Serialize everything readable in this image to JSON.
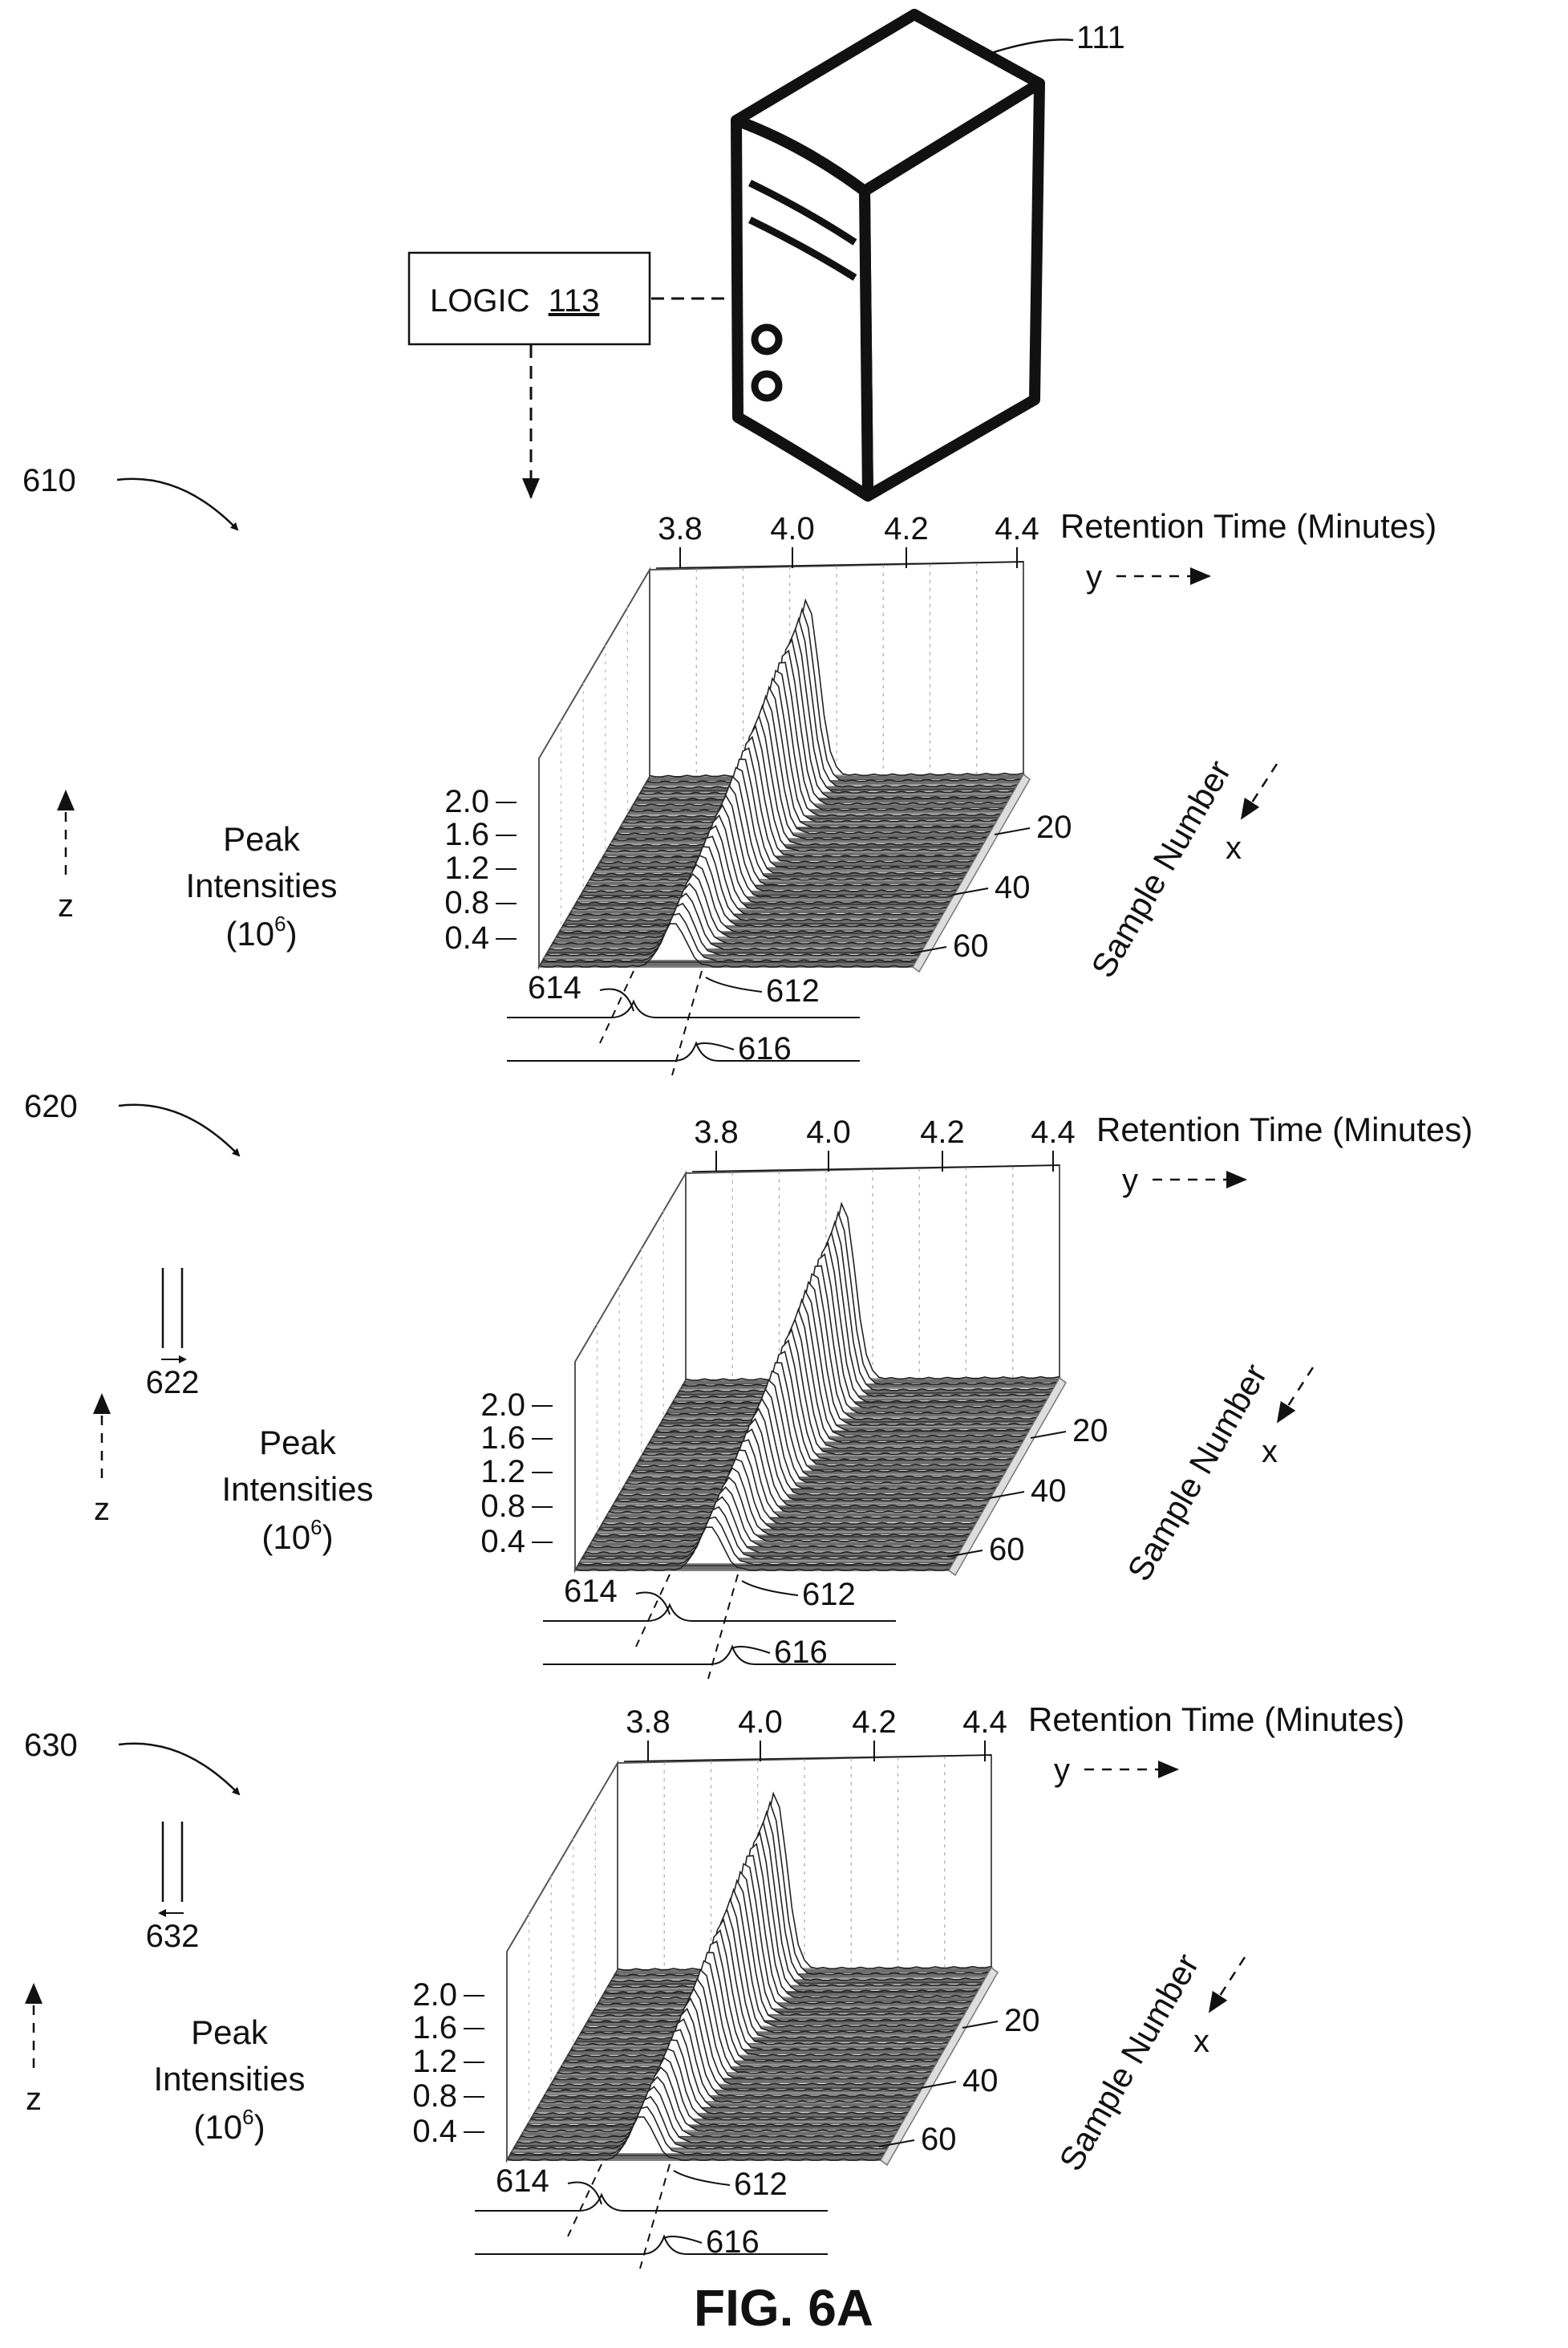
{
  "server": {
    "ref": "111",
    "logic_label": "LOGIC",
    "logic_ref": "113"
  },
  "panels": [
    {
      "ref": "610",
      "y_axis_label": "Retention Time (Minutes)",
      "y_dir": "y",
      "y_ticks": [
        "3.8",
        "4.0",
        "4.2",
        "4.4"
      ],
      "z_label": [
        "Peak",
        "Intensities",
        "(10",
        "6",
        ")"
      ],
      "z_dir": "z",
      "z_ticks": [
        "2.0",
        "1.6",
        "1.2",
        "0.8",
        "0.4"
      ],
      "x_axis_label": "Sample Number",
      "x_dir": "x",
      "x_ticks": [
        "20",
        "40",
        "60"
      ],
      "callouts": [
        "614",
        "612",
        "616"
      ],
      "arrow_ref": ""
    },
    {
      "ref": "620",
      "y_axis_label": "Retention Time (Minutes)",
      "y_dir": "y",
      "y_ticks": [
        "3.8",
        "4.0",
        "4.2",
        "4.4"
      ],
      "z_label": [
        "Peak",
        "Intensities",
        "(10",
        "6",
        ")"
      ],
      "z_dir": "z",
      "z_ticks": [
        "2.0",
        "1.6",
        "1.2",
        "0.8",
        "0.4"
      ],
      "x_axis_label": "Sample Number",
      "x_dir": "x",
      "x_ticks": [
        "20",
        "40",
        "60"
      ],
      "callouts": [
        "614",
        "612",
        "616"
      ],
      "arrow_ref": "622"
    },
    {
      "ref": "630",
      "y_axis_label": "Retention Time (Minutes)",
      "y_dir": "y",
      "y_ticks": [
        "3.8",
        "4.0",
        "4.2",
        "4.4"
      ],
      "z_label": [
        "Peak",
        "Intensities",
        "(10",
        "6",
        ")"
      ],
      "z_dir": "z",
      "z_ticks": [
        "2.0",
        "1.6",
        "1.2",
        "0.8",
        "0.4"
      ],
      "x_axis_label": "Sample Number",
      "x_dir": "x",
      "x_ticks": [
        "20",
        "40",
        "60"
      ],
      "callouts": [
        "614",
        "612",
        "616"
      ],
      "arrow_ref": "632"
    }
  ],
  "caption": "FIG. 6A"
}
